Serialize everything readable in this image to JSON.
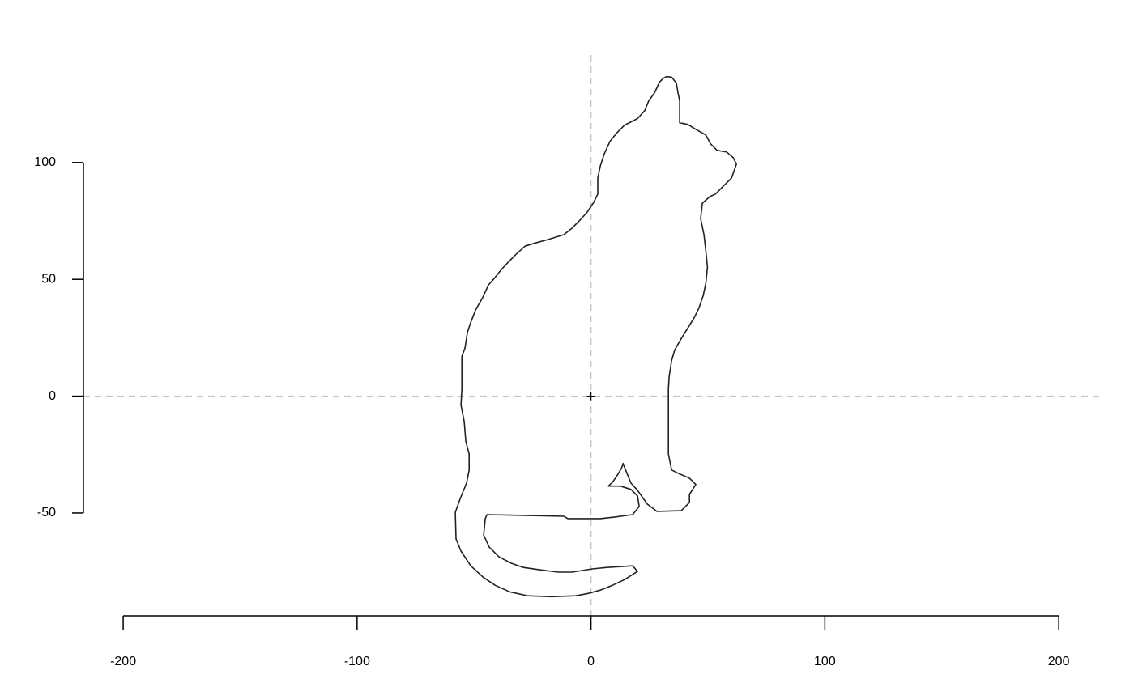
{
  "chart_data": {
    "type": "line",
    "color": "#222222",
    "x": [
      32.4,
      34.5,
      36.5,
      37.2,
      37.9,
      37.9,
      41.4,
      44.8,
      49.1,
      51.1,
      53.9,
      58.0,
      60.8,
      62.2,
      60.1,
      57.0,
      53.2,
      50.8,
      47.6,
      46.9,
      48.3,
      49.1,
      49.8,
      49.1,
      48.0,
      46.2,
      44.2,
      41.4,
      38.6,
      35.8,
      34.5,
      33.4,
      33.1,
      33.1,
      34.5,
      37.9,
      42.1,
      44.8,
      42.1,
      42.1,
      38.6,
      28.2,
      24.1,
      19.9,
      17.1,
      15.1,
      13.7,
      13.0,
      10.9,
      9.2,
      7.4,
      12.6,
      17.1,
      19.9,
      20.6,
      17.8,
      10.2,
      4.0,
      -9.9,
      -11.6,
      -30.6,
      -44.5,
      -45.2,
      -45.9,
      -43.5,
      -39.3,
      -34.1,
      -28.9,
      -22.0,
      -14.0,
      -8.1,
      0.5,
      6.8,
      17.8,
      19.9,
      14.4,
      9.2,
      4.0,
      -1.2,
      -6.4,
      -16.8,
      -27.2,
      -34.8,
      -41.0,
      -46.2,
      -51.4,
      -55.6,
      -57.7,
      -58.0,
      -55.9,
      -53.2,
      -52.1,
      -52.1,
      -53.5,
      -54.2,
      -55.6,
      -55.2,
      -55.2,
      -53.9,
      -52.8,
      -51.4,
      -49.4,
      -46.2,
      -43.8,
      -41.7,
      -38.3,
      -35.8,
      -32.4,
      -28.2,
      -23.7,
      -18.5,
      -11.6,
      -8.1,
      -4.7,
      -1.6,
      1.2,
      2.9,
      2.9,
      4.0,
      5.7,
      8.1,
      10.9,
      14.4,
      19.9,
      23.0,
      24.7,
      27.2,
      29.3,
      31.0,
      32.4
    ],
    "values": [
      136.8,
      136.5,
      134.0,
      129.9,
      126.4,
      117.0,
      116.3,
      114.2,
      111.8,
      108.0,
      105.2,
      104.5,
      102.1,
      99.3,
      93.4,
      90.3,
      86.5,
      85.4,
      82.6,
      76.0,
      69.1,
      62.2,
      55.2,
      48.3,
      43.1,
      37.8,
      33.7,
      29.2,
      24.7,
      19.8,
      15.3,
      8.3,
      3.1,
      -24.7,
      -31.6,
      -33.3,
      -35.1,
      -37.8,
      -42.0,
      -45.5,
      -49.0,
      -49.3,
      -46.2,
      -40.3,
      -37.2,
      -32.3,
      -28.8,
      -30.9,
      -34.4,
      -36.8,
      -38.5,
      -38.5,
      -39.9,
      -42.7,
      -47.2,
      -50.7,
      -51.7,
      -52.4,
      -52.4,
      -51.4,
      -51.0,
      -50.7,
      -52.4,
      -59.4,
      -64.6,
      -68.8,
      -71.5,
      -73.3,
      -74.3,
      -75.3,
      -75.3,
      -73.9,
      -73.3,
      -72.6,
      -75.0,
      -78.5,
      -80.9,
      -83.0,
      -84.4,
      -85.4,
      -85.8,
      -85.4,
      -83.7,
      -80.9,
      -77.4,
      -72.6,
      -66.3,
      -61.1,
      -49.7,
      -43.8,
      -37.2,
      -31.6,
      -24.7,
      -19.4,
      -10.8,
      -3.8,
      3.1,
      17.0,
      20.5,
      27.4,
      31.6,
      36.8,
      42.4,
      47.6,
      50.0,
      54.2,
      56.9,
      60.4,
      64.2,
      65.6,
      67.0,
      69.1,
      71.9,
      75.3,
      78.8,
      83.0,
      86.5,
      93.4,
      98.6,
      103.8,
      109.0,
      112.5,
      116.0,
      118.8,
      122.2,
      126.4,
      129.9,
      134.4,
      136.1,
      136.8
    ],
    "xlim": [
      -217,
      219
    ],
    "ylim": [
      -94,
      146
    ],
    "xticks": [
      -200,
      -100,
      0,
      100,
      200
    ],
    "yticks": [
      -50,
      0,
      50,
      100
    ]
  }
}
